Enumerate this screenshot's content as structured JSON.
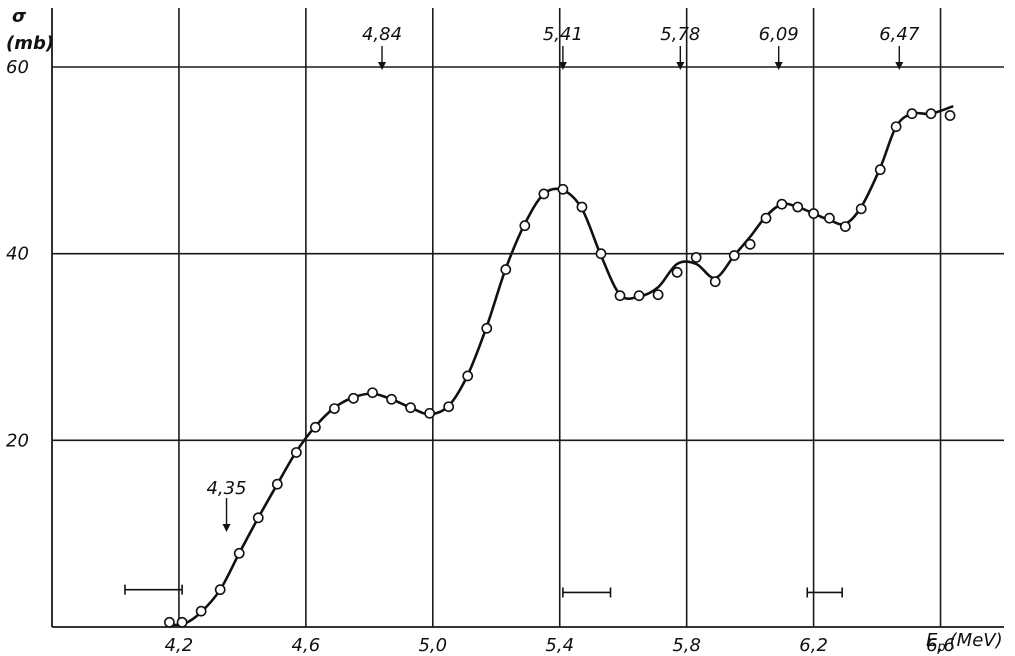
{
  "chart_data": {
    "type": "scatter",
    "title": "",
    "y_title_top": "σ",
    "y_title_unit": "(mb)",
    "xlabel": "E",
    "xlabel_sub": "p",
    "xlabel_unit": "(MeV)",
    "xlim": [
      3.8,
      6.8
    ],
    "ylim": [
      0,
      60
    ],
    "grid": true,
    "x_ticks": [
      {
        "value": 4.2,
        "label": "4,2"
      },
      {
        "value": 4.6,
        "label": "4,6"
      },
      {
        "value": 5.0,
        "label": "5,0"
      },
      {
        "value": 5.4,
        "label": "5,4"
      },
      {
        "value": 5.8,
        "label": "5,8"
      },
      {
        "value": 6.2,
        "label": "6,2"
      },
      {
        "value": 6.6,
        "label": "6,6"
      }
    ],
    "y_ticks": [
      {
        "value": 20,
        "label": "20"
      },
      {
        "value": 40,
        "label": "40"
      },
      {
        "value": 60,
        "label": "60"
      }
    ],
    "x_grid": [
      4.2,
      4.6,
      5.0,
      5.4,
      5.8,
      6.2,
      6.6
    ],
    "y_grid": [
      20,
      40,
      60
    ],
    "series": [
      {
        "x": [
          4.17,
          4.21,
          4.27,
          4.33,
          4.39,
          4.45,
          4.51,
          4.57,
          4.63,
          4.69,
          4.75,
          4.81,
          4.87,
          4.93,
          4.99,
          5.05,
          5.11,
          5.17,
          5.23,
          5.29,
          5.35,
          5.41,
          5.47,
          5.53,
          5.59,
          5.65,
          5.71,
          5.77,
          5.83,
          5.89,
          5.95,
          6.0,
          6.05,
          6.1,
          6.15,
          6.2,
          6.25,
          6.3,
          6.35,
          6.41,
          6.46,
          6.51,
          6.57,
          6.63
        ],
        "y": [
          0.5,
          0.5,
          1.7,
          4.0,
          7.9,
          11.7,
          15.3,
          18.7,
          21.4,
          23.4,
          24.5,
          25.1,
          24.4,
          23.5,
          22.9,
          23.6,
          26.9,
          32.0,
          38.3,
          43.0,
          46.4,
          46.9,
          45.0,
          40.0,
          35.5,
          35.5,
          35.6,
          38.0,
          39.6,
          37.0,
          39.8,
          41.0,
          43.8,
          45.3,
          45.0,
          44.3,
          43.8,
          42.9,
          44.8,
          49.0,
          53.6,
          55.0,
          55.0,
          54.8
        ]
      }
    ],
    "curve": {
      "x": [
        4.17,
        4.22,
        4.27,
        4.33,
        4.39,
        4.45,
        4.51,
        4.57,
        4.63,
        4.69,
        4.75,
        4.81,
        4.87,
        4.93,
        4.99,
        5.05,
        5.11,
        5.17,
        5.23,
        5.29,
        5.35,
        5.41,
        5.47,
        5.53,
        5.59,
        5.65,
        5.71,
        5.77,
        5.83,
        5.89,
        5.95,
        6.0,
        6.05,
        6.1,
        6.15,
        6.2,
        6.25,
        6.3,
        6.35,
        6.41,
        6.46,
        6.51,
        6.57,
        6.64
      ],
      "y": [
        0.2,
        0.4,
        1.6,
        4.0,
        7.9,
        11.7,
        15.3,
        18.8,
        21.5,
        23.5,
        24.6,
        25.0,
        24.4,
        23.5,
        22.8,
        23.7,
        27.0,
        32.2,
        38.4,
        43.2,
        46.4,
        46.8,
        44.8,
        39.8,
        35.6,
        35.4,
        36.4,
        38.9,
        38.9,
        37.4,
        39.8,
        41.8,
        44.0,
        45.3,
        45.0,
        44.3,
        43.6,
        43.2,
        45.0,
        49.2,
        53.6,
        55.0,
        55.0,
        55.8
      ]
    },
    "arrows": [
      {
        "x": 4.35,
        "label": "4,35"
      },
      {
        "x": 4.84,
        "label": "4,84"
      },
      {
        "x": 5.41,
        "label": "5,41"
      },
      {
        "x": 5.78,
        "label": "5,78"
      },
      {
        "x": 6.09,
        "label": "6,09"
      },
      {
        "x": 6.47,
        "label": "6,47"
      }
    ],
    "error_bars": [
      {
        "x1": 4.03,
        "x2": 4.21,
        "y": 4.0
      },
      {
        "x1": 5.41,
        "x2": 5.56,
        "y": 3.7
      },
      {
        "x1": 6.18,
        "x2": 6.29,
        "y": 3.7
      }
    ]
  }
}
